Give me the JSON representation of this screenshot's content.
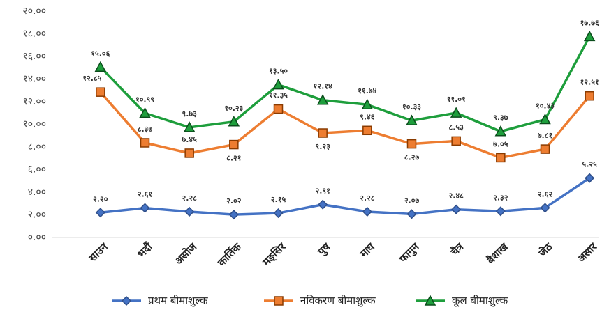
{
  "chart_data": {
    "type": "line",
    "categories": [
      "साउन",
      "भदौं",
      "असोज",
      "कार्तिक",
      "मङ्सिर",
      "पुष",
      "माघ",
      "फागुन",
      "चैत्र",
      "बैशाख",
      "जेठ",
      "असार"
    ],
    "series": [
      {
        "name": "प्रथम बीमाशुल्क",
        "color": "#4472c4",
        "marker": "diamond",
        "values": [
          2.2,
          2.61,
          2.28,
          2.02,
          2.15,
          2.91,
          2.28,
          2.07,
          2.48,
          2.32,
          2.62,
          5.25
        ],
        "value_labels": [
          "२.२०",
          "२.६१",
          "२.२८",
          "२.०२",
          "२.१५",
          "२.९१",
          "२.२८",
          "२.०७",
          "२.४८",
          "२.३२",
          "२.६२",
          "५.२५"
        ]
      },
      {
        "name": "नविकरण बीमाशुल्क",
        "color": "#ed7d31",
        "marker": "square",
        "values": [
          12.85,
          8.37,
          7.45,
          8.21,
          11.35,
          9.23,
          9.46,
          8.27,
          8.53,
          7.05,
          7.81,
          12.51
        ],
        "value_labels": [
          "१२.८५",
          "८.३७",
          "७.४५",
          "८.२१",
          "११.३५",
          "९.२३",
          "९.४६",
          "८.२७",
          "८.५३",
          "७.०५",
          "७.८१",
          "१२.५१"
        ]
      },
      {
        "name": "कूल बीमाशुल्क",
        "color": "#1e9e3c",
        "marker": "triangle",
        "values": [
          15.06,
          10.99,
          9.73,
          10.23,
          13.5,
          12.14,
          11.74,
          10.33,
          11.01,
          9.37,
          10.43,
          17.76
        ],
        "value_labels": [
          "१५.०६",
          "१०.९९",
          "९.७३",
          "१०.२३",
          "१३.५०",
          "१२.१४",
          "११.७४",
          "१०.३३",
          "११.०१",
          "९.३७",
          "१०.४३",
          "१७.७६"
        ]
      }
    ],
    "ylim": [
      0,
      20
    ],
    "yticks": [
      {
        "value": 0,
        "label": "०.००"
      },
      {
        "value": 2,
        "label": "२.००"
      },
      {
        "value": 4,
        "label": "४.००"
      },
      {
        "value": 6,
        "label": "६.००"
      },
      {
        "value": 8,
        "label": "८.००"
      },
      {
        "value": 10,
        "label": "१०.००"
      },
      {
        "value": 12,
        "label": "१२.००"
      },
      {
        "value": 14,
        "label": "१४.००"
      },
      {
        "value": 16,
        "label": "१६.००"
      },
      {
        "value": 18,
        "label": "१८.००"
      },
      {
        "value": 20,
        "label": "२०.००"
      }
    ],
    "grid": false,
    "legend": "bottom"
  }
}
